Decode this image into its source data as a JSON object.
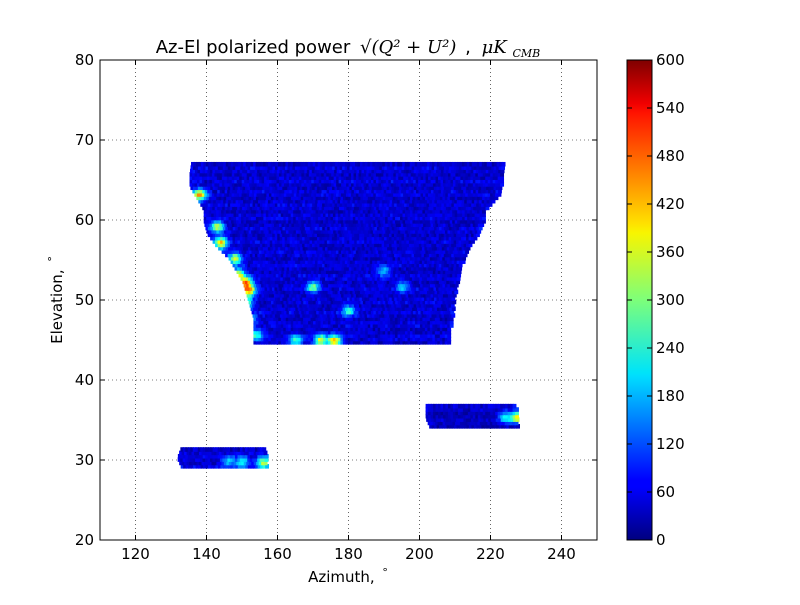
{
  "chart_data": {
    "type": "heatmap",
    "title": {
      "prefix": "Az-El polarized power",
      "formula": "√(Q² + U²)",
      "separator": ",",
      "unit": "μK",
      "unit_sub": "CMB"
    },
    "xlabel": {
      "text": "Azimuth,",
      "unit": "°"
    },
    "ylabel": {
      "text": "Elevation,",
      "unit": "°"
    },
    "xlim": [
      110,
      250
    ],
    "ylim": [
      20,
      80
    ],
    "x_ticks": [
      120,
      140,
      160,
      180,
      200,
      220,
      240
    ],
    "y_ticks": [
      20,
      30,
      40,
      50,
      60,
      70,
      80
    ],
    "grid": true,
    "colorbar": {
      "colormap": "jet",
      "min": 0,
      "max": 600,
      "ticks": [
        0,
        60,
        120,
        180,
        240,
        300,
        360,
        420,
        480,
        540,
        600
      ]
    },
    "regions": [
      {
        "name": "main-field",
        "el_min": 44.5,
        "el_max": 67,
        "row_az_ranges": [
          [
            67.0,
            136.0,
            224.0
          ],
          [
            65.5,
            135.5,
            223.5
          ],
          [
            64.0,
            135.5,
            223.0
          ],
          [
            62.5,
            137.5,
            222.0
          ],
          [
            61.0,
            139.5,
            218.5
          ],
          [
            59.5,
            139.5,
            218.0
          ],
          [
            58.0,
            140.5,
            216.5
          ],
          [
            56.5,
            143.0,
            214.5
          ],
          [
            55.0,
            146.5,
            212.5
          ],
          [
            53.5,
            148.5,
            211.5
          ],
          [
            52.0,
            150.5,
            211.0
          ],
          [
            50.5,
            151.5,
            210.0
          ],
          [
            49.0,
            152.5,
            209.5
          ],
          [
            47.5,
            153.5,
            209.5
          ],
          [
            46.0,
            153.5,
            208.5
          ],
          [
            44.5,
            153.5,
            208.5
          ]
        ],
        "typical_value": 40,
        "hotspots": [
          {
            "az": 138,
            "el": 63,
            "value": 380
          },
          {
            "az": 143,
            "el": 59,
            "value": 300
          },
          {
            "az": 144,
            "el": 57,
            "value": 360
          },
          {
            "az": 148,
            "el": 55,
            "value": 300
          },
          {
            "az": 149,
            "el": 53,
            "value": 320
          },
          {
            "az": 151,
            "el": 52,
            "value": 400
          },
          {
            "az": 152,
            "el": 51,
            "value": 360
          },
          {
            "az": 151,
            "el": 49.5,
            "value": 260
          },
          {
            "az": 152,
            "el": 47.5,
            "value": 220
          },
          {
            "az": 154,
            "el": 45.5,
            "value": 200
          },
          {
            "az": 170,
            "el": 51.5,
            "value": 260
          },
          {
            "az": 176,
            "el": 44.8,
            "value": 380
          },
          {
            "az": 172,
            "el": 44.8,
            "value": 320
          },
          {
            "az": 165,
            "el": 44.8,
            "value": 220
          },
          {
            "az": 180,
            "el": 48.5,
            "value": 200
          },
          {
            "az": 195,
            "el": 51.5,
            "value": 160
          },
          {
            "az": 190,
            "el": 53.5,
            "value": 150
          }
        ]
      },
      {
        "name": "right-field",
        "el_min": 34,
        "el_max": 36.8,
        "row_az_ranges": [
          [
            36.5,
            202,
            227
          ],
          [
            35.0,
            202,
            228
          ],
          [
            34.0,
            203,
            227.5
          ]
        ],
        "typical_value": 30,
        "hotspots": [
          {
            "az": 227.5,
            "el": 35.2,
            "value": 340
          },
          {
            "az": 224,
            "el": 35.2,
            "value": 200
          }
        ]
      },
      {
        "name": "left-field",
        "el_min": 29,
        "el_max": 31.5,
        "row_az_ranges": [
          [
            31.2,
            133,
            156
          ],
          [
            30.0,
            132,
            157
          ],
          [
            29.0,
            133,
            157
          ]
        ],
        "typical_value": 40,
        "hotspots": [
          {
            "az": 156,
            "el": 29.5,
            "value": 300
          },
          {
            "az": 150,
            "el": 29.6,
            "value": 200
          },
          {
            "az": 146,
            "el": 29.6,
            "value": 160
          }
        ]
      }
    ]
  }
}
